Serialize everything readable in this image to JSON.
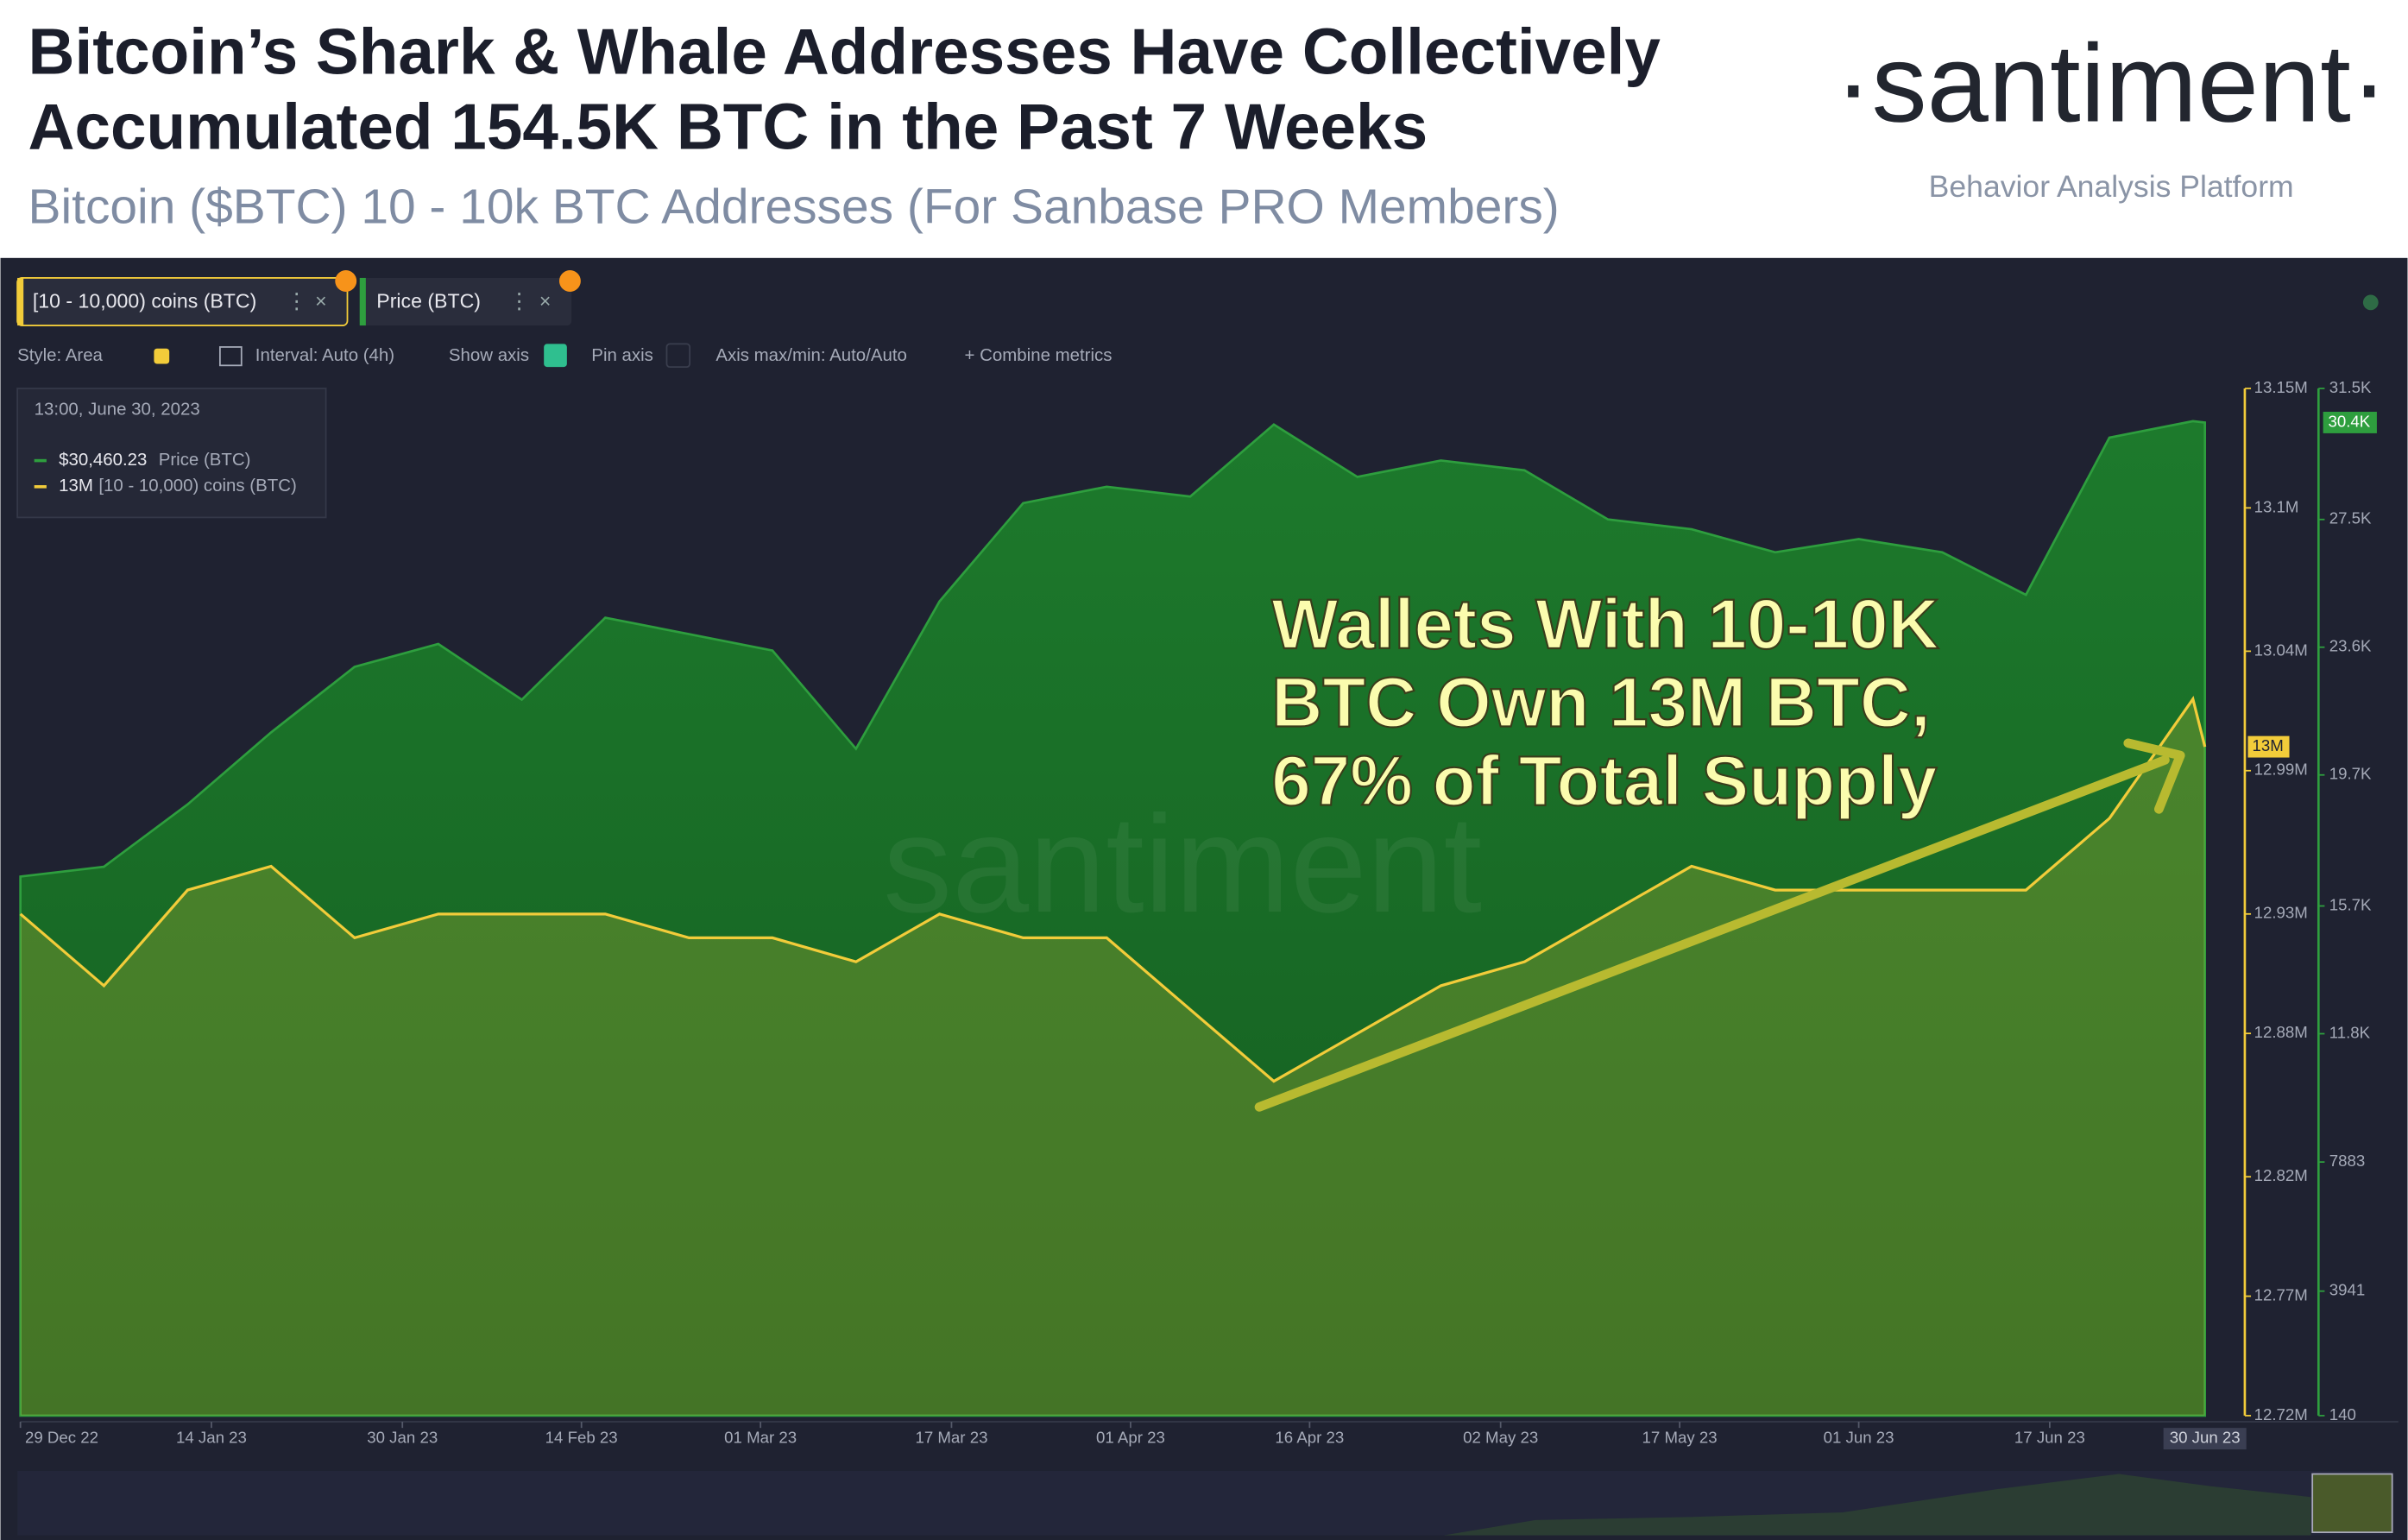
{
  "chart_data": {
    "type": "line",
    "title": [
      "Bitcoin’s Shark & Whale Addresses Have Collectively",
      "Accumulated 154.5K BTC in the Past 7 Weeks"
    ],
    "subtitle": "Bitcoin ($BTC) 10 - 10k BTC Addresses (For Sanbase PRO Members)",
    "annotation": [
      "Wallets With 10-10K",
      "BTC Own 13M BTC,",
      "67% of Total Supply"
    ],
    "x": [
      "2022-12-29",
      "2023-01-05",
      "2023-01-12",
      "2023-01-19",
      "2023-01-26",
      "2023-02-02",
      "2023-02-09",
      "2023-02-16",
      "2023-02-23",
      "2023-03-02",
      "2023-03-09",
      "2023-03-16",
      "2023-03-23",
      "2023-03-30",
      "2023-04-06",
      "2023-04-13",
      "2023-04-20",
      "2023-04-27",
      "2023-05-04",
      "2023-05-11",
      "2023-05-18",
      "2023-05-25",
      "2023-06-01",
      "2023-06-08",
      "2023-06-15",
      "2023-06-22",
      "2023-06-29",
      "2023-06-30"
    ],
    "series": [
      {
        "name": "Price (BTC)",
        "color": "#2e9e3e",
        "axis": "y2",
        "style": "area",
        "values": [
          16600,
          16900,
          18800,
          21000,
          23000,
          23700,
          22000,
          24500,
          24000,
          23500,
          20500,
          25000,
          28000,
          28500,
          28200,
          30400,
          28800,
          29300,
          29000,
          27500,
          27200,
          26500,
          26900,
          26500,
          25200,
          30000,
          30500,
          30460
        ]
      },
      {
        "name": "[10 - 10,000) coins (BTC)",
        "color": "#f2cc3a",
        "axis": "y",
        "style": "line",
        "values": [
          12930000,
          12900000,
          12940000,
          12950000,
          12920000,
          12930000,
          12930000,
          12930000,
          12920000,
          12920000,
          12910000,
          12930000,
          12920000,
          12920000,
          12890000,
          12860000,
          12880000,
          12900000,
          12910000,
          12930000,
          12950000,
          12940000,
          12940000,
          12940000,
          12940000,
          12970000,
          13020000,
          13000000
        ]
      }
    ],
    "ylim": [
      12720000,
      13150000
    ],
    "yticks": [
      {
        "value": 12720000,
        "label": "12.72M"
      },
      {
        "value": 12770000,
        "label": "12.77M"
      },
      {
        "value": 12820000,
        "label": "12.82M"
      },
      {
        "value": 12880000,
        "label": "12.88M"
      },
      {
        "value": 12930000,
        "label": "12.93M"
      },
      {
        "value": 12990000,
        "label": "12.99M"
      },
      {
        "value": 13040000,
        "label": "13.04M"
      },
      {
        "value": 13100000,
        "label": "13.1M"
      },
      {
        "value": 13150000,
        "label": "13.15M"
      }
    ],
    "y2lim": [
      140,
      31500
    ],
    "y2ticks": [
      140,
      3941,
      7883,
      {
        "value": 11800,
        "label": "11.8K"
      },
      {
        "value": 15700,
        "label": "15.7K"
      },
      {
        "value": 19700,
        "label": "19.7K"
      },
      {
        "value": 23600,
        "label": "23.6K"
      },
      {
        "value": 27500,
        "label": "27.5K"
      },
      {
        "value": 31500,
        "label": "31.5K"
      }
    ],
    "xlim": [
      "2022-12-29",
      "2023-06-30"
    ],
    "xticks": [
      {
        "value": "2022-12-29",
        "label": "29 Dec 22"
      },
      {
        "value": "2023-01-14",
        "label": "14 Jan 23"
      },
      {
        "value": "2023-01-30",
        "label": "30 Jan 23"
      },
      {
        "value": "2023-02-14",
        "label": "14 Feb 23"
      },
      {
        "value": "2023-03-01",
        "label": "01 Mar 23"
      },
      {
        "value": "2023-03-17",
        "label": "17 Mar 23"
      },
      {
        "value": "2023-04-01",
        "label": "01 Apr 23"
      },
      {
        "value": "2023-04-16",
        "label": "16 Apr 23"
      },
      {
        "value": "2023-05-02",
        "label": "02 May 23"
      },
      {
        "value": "2023-05-17",
        "label": "17 May 23"
      },
      {
        "value": "2023-06-01",
        "label": "01 Jun 23"
      },
      {
        "value": "2023-06-17",
        "label": "17 Jun 23"
      }
    ],
    "last_x_label": "30 Jun 23",
    "badges": [
      "13M",
      "30.4K"
    ]
  },
  "ui": {
    "logo": "·santiment·",
    "tagline": "Behavior Analysis Platform",
    "watermark": "santiment",
    "tabs": [
      "[10 - 10,000) coins (BTC)",
      "Price (BTC)"
    ],
    "toolbar": [
      "Style: Area",
      "Interval: Auto (4h)",
      "Show axis",
      "Pin axis",
      "Axis max/min: Auto/Auto",
      "+  Combine metrics"
    ],
    "tooltip": {
      "date": "13:00, June 30, 2023",
      "rows": [
        [
          "$30,460.23",
          "Price (BTC)"
        ],
        [
          "13M",
          "[10 - 10,000) coins (BTC)"
        ]
      ]
    }
  }
}
